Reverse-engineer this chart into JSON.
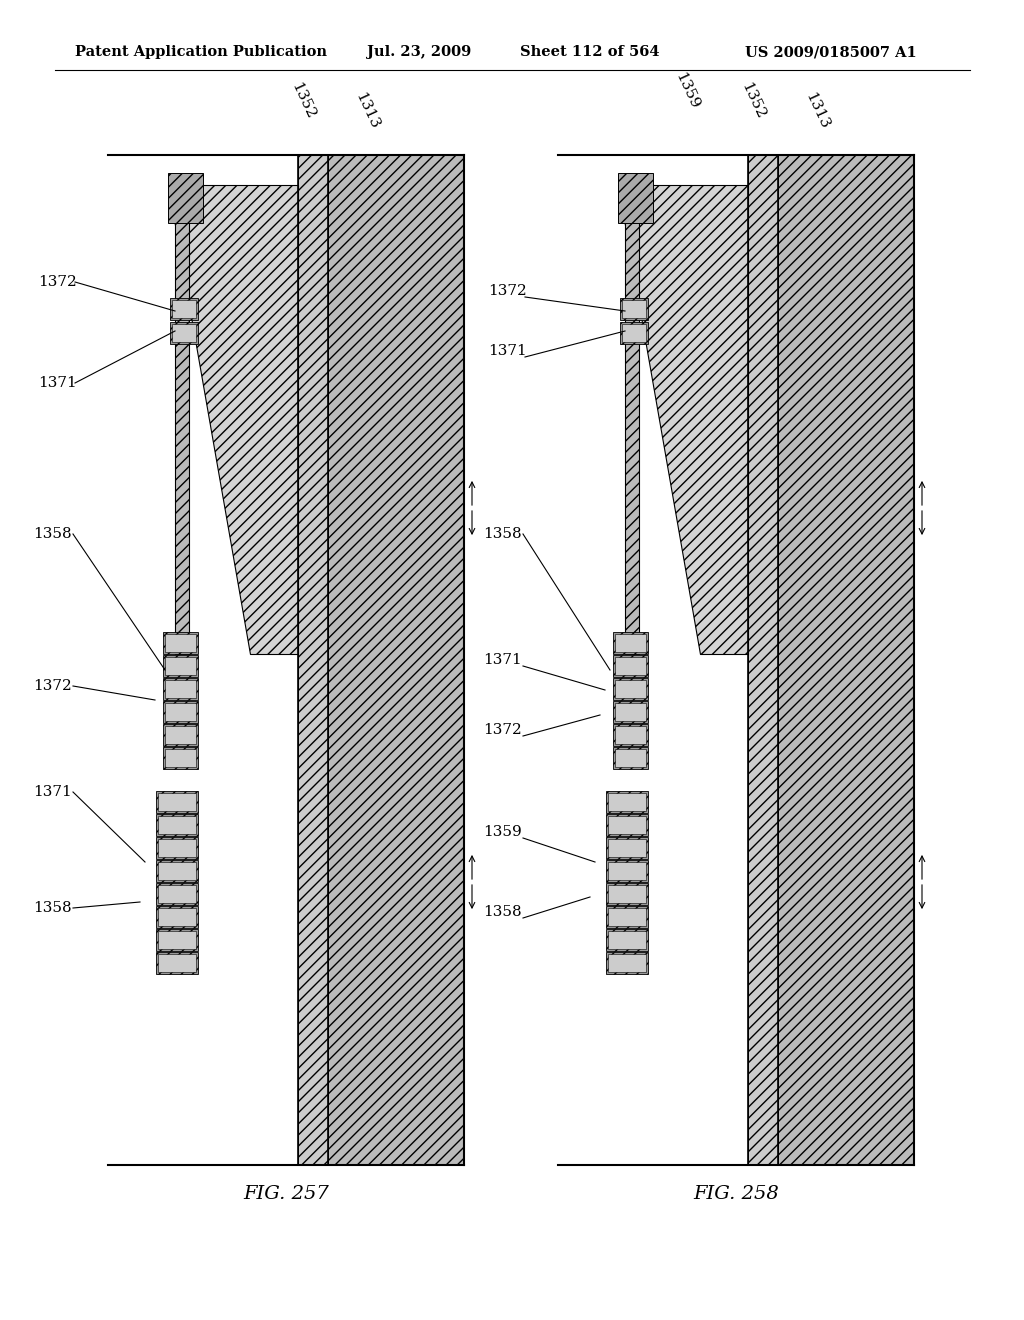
{
  "background_color": "#ffffff",
  "header_text": "Patent Application Publication",
  "header_date": "Jul. 23, 2009",
  "header_sheet": "Sheet 112 of 564",
  "header_patent": "US 2009/0185007 A1",
  "fig257_label": "FIG. 257",
  "fig258_label": "FIG. 258",
  "line_color": "#000000",
  "hatch_main": "///",
  "hatch_chamber": "///",
  "fc_substrate1": "#c8c8c8",
  "fc_substrate2": "#b0b0b0",
  "fc_chamber": "#d8d8d8",
  "fc_bump": "#a0a0a0"
}
